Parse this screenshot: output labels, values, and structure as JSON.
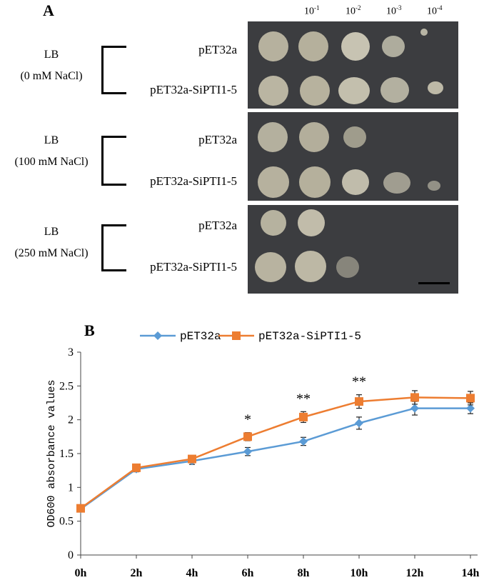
{
  "panel_a": {
    "letter": "A",
    "dilutions": [
      {
        "base": "10",
        "exp": "-1"
      },
      {
        "base": "10",
        "exp": "-2"
      },
      {
        "base": "10",
        "exp": "-3"
      },
      {
        "base": "10",
        "exp": "-4"
      }
    ],
    "conditions": [
      {
        "medium": "LB",
        "salt": "(0 mM NaCl)",
        "strains": [
          "pET32a",
          "pET32a-SiPTI1-5"
        ]
      },
      {
        "medium": "LB",
        "salt": "(100 mM NaCl)",
        "strains": [
          "pET32a",
          "pET32a-SiPTI1-5"
        ]
      },
      {
        "medium": "LB",
        "salt": "(250 mM NaCl)",
        "strains": [
          "pET32a",
          "pET32a-SiPTI1-5"
        ]
      }
    ]
  },
  "panel_b": {
    "letter": "B"
  },
  "chart_data": {
    "type": "line",
    "x": [
      "0h",
      "2h",
      "4h",
      "6h",
      "8h",
      "10h",
      "12h",
      "14h"
    ],
    "ylabel": "OD600 absorbance values",
    "xlabel": "",
    "ylim": [
      0,
      3
    ],
    "yticks": [
      "0",
      "0.5",
      "1",
      "1.5",
      "2",
      "2.5",
      "3"
    ],
    "legend_position": "top",
    "grid": false,
    "series": [
      {
        "name": "pET32a",
        "color": "#5b9bd5",
        "marker": "diamond",
        "values": [
          0.68,
          1.27,
          1.39,
          1.53,
          1.68,
          1.95,
          2.17,
          2.17
        ],
        "errors": [
          0.03,
          0.04,
          0.05,
          0.06,
          0.06,
          0.09,
          0.1,
          0.08
        ]
      },
      {
        "name": "pET32a-SiPTI1-5",
        "color": "#ed7d31",
        "marker": "square",
        "values": [
          0.69,
          1.29,
          1.42,
          1.75,
          2.04,
          2.27,
          2.33,
          2.32
        ],
        "errors": [
          0.03,
          0.04,
          0.05,
          0.06,
          0.08,
          0.1,
          0.1,
          0.1
        ]
      }
    ],
    "annotations": [
      {
        "x": "6h",
        "text": "*"
      },
      {
        "x": "8h",
        "text": "**"
      },
      {
        "x": "10h",
        "text": "**"
      }
    ]
  }
}
